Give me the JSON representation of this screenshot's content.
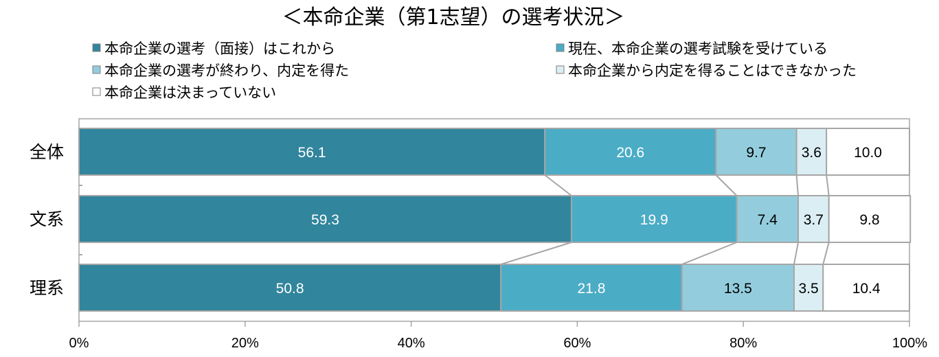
{
  "chart_data": {
    "type": "bar",
    "orientation": "horizontal",
    "stacked": true,
    "title": "＜本命企業（第1志望）の選考状況＞",
    "categories": [
      "全体",
      "文系",
      "理系"
    ],
    "series": [
      {
        "name": "本命企業の選考（面接）はこれから",
        "values": [
          56.1,
          59.3,
          50.8
        ],
        "color": "#31859c",
        "label_color": "#ffffff"
      },
      {
        "name": "現在、本命企業の選考試験を受けている",
        "values": [
          20.6,
          19.9,
          21.8
        ],
        "color": "#4bacc6",
        "label_color": "#ffffff"
      },
      {
        "name": "本命企業の選考が終わり、内定を得た",
        "values": [
          9.7,
          7.4,
          13.5
        ],
        "color": "#93cddd",
        "label_color": "#000000"
      },
      {
        "name": "本命企業から内定を得ることはできなかった",
        "values": [
          3.6,
          3.7,
          3.5
        ],
        "color": "#dbeef4",
        "label_color": "#000000"
      },
      {
        "name": "本命企業は決まっていない",
        "values": [
          10.0,
          9.8,
          10.4
        ],
        "color": "#ffffff",
        "label_color": "#000000"
      }
    ],
    "value_labels": [
      [
        "56.1",
        "20.6",
        "9.7",
        "3.6",
        "10.0"
      ],
      [
        "59.3",
        "19.9",
        "7.4",
        "3.7",
        "9.8"
      ],
      [
        "50.8",
        "21.8",
        "13.5",
        "3.5",
        "10.4"
      ]
    ],
    "xlim": [
      0,
      100
    ],
    "xticks": [
      "0%",
      "20%",
      "40%",
      "60%",
      "80%",
      "100%"
    ],
    "xlabel": "",
    "ylabel": "",
    "legend_position": "top",
    "grid": false,
    "series_lines": true
  }
}
